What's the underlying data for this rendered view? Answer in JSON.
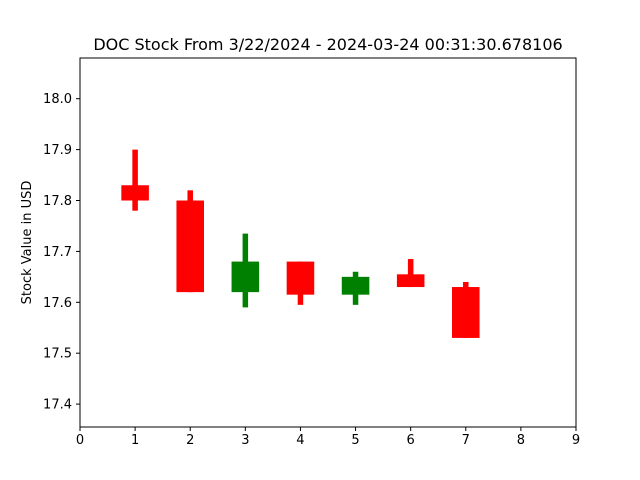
{
  "chart_data": {
    "type": "candlestick",
    "title": "DOC Stock From 3/22/2024 - 2024-03-24 00:31:30.678106",
    "xlabel": "",
    "ylabel": "Stock Value in USD",
    "xlim": [
      0,
      9
    ],
    "ylim": [
      17.355,
      18.08
    ],
    "x_ticks": [
      0,
      1,
      2,
      3,
      4,
      5,
      6,
      7,
      8,
      9
    ],
    "y_ticks": [
      17.4,
      17.5,
      17.6,
      17.7,
      17.8,
      17.9,
      18.0
    ],
    "y_tick_labels": [
      "17.4",
      "17.5",
      "17.6",
      "17.7",
      "17.8",
      "17.9",
      "18.0"
    ],
    "grid": false,
    "colors": {
      "up": "#008000",
      "down": "#ff0000"
    },
    "candles": [
      {
        "x": 1,
        "open": 17.83,
        "close": 17.8,
        "high": 17.9,
        "low": 17.78
      },
      {
        "x": 2,
        "open": 17.8,
        "close": 17.62,
        "high": 17.82,
        "low": 17.62
      },
      {
        "x": 3,
        "open": 17.62,
        "close": 17.68,
        "high": 17.735,
        "low": 17.59
      },
      {
        "x": 4,
        "open": 17.68,
        "close": 17.615,
        "high": 17.68,
        "low": 17.595
      },
      {
        "x": 5,
        "open": 17.615,
        "close": 17.65,
        "high": 17.66,
        "low": 17.595
      },
      {
        "x": 6,
        "open": 17.655,
        "close": 17.63,
        "high": 17.685,
        "low": 17.63
      },
      {
        "x": 7,
        "open": 17.63,
        "close": 17.53,
        "high": 17.64,
        "low": 17.53
      }
    ]
  }
}
